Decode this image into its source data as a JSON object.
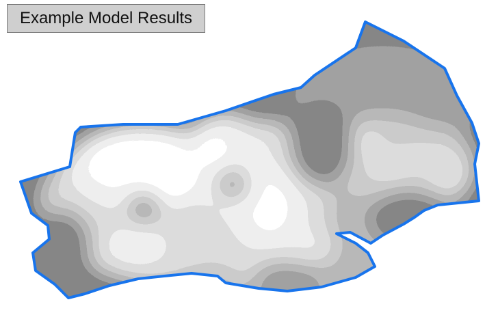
{
  "map": {
    "title": "Example Model Results",
    "boundary_color": "#1874ec",
    "shading_palette": [
      "#ffffff",
      "#dadada",
      "#b6b6b6",
      "#9a9a9a",
      "#7c7c7c",
      "#5c5c5c",
      "#3c3c3c"
    ]
  }
}
